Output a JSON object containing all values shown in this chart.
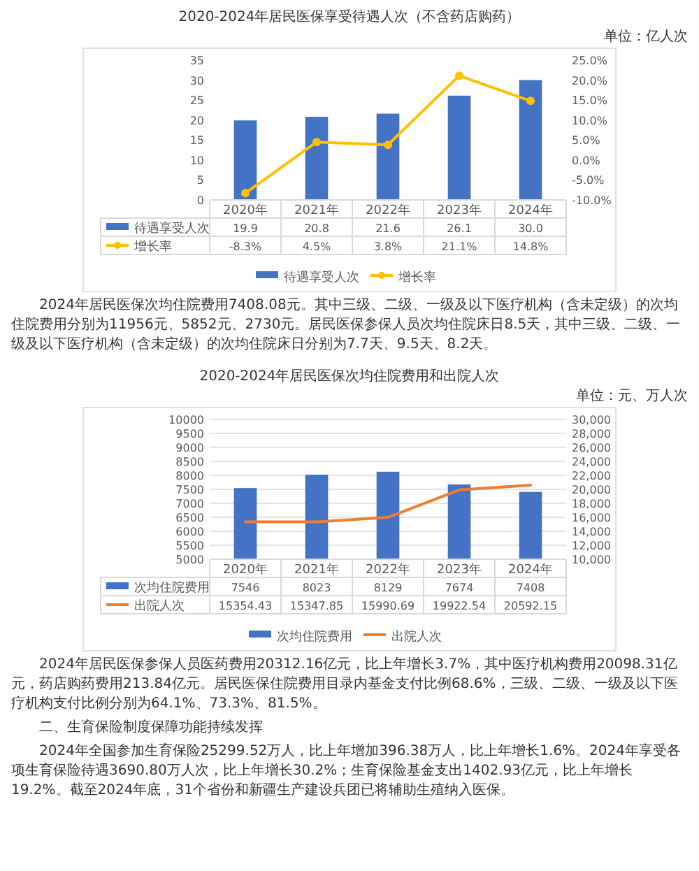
{
  "chart_data": [
    {
      "type": "bar",
      "title": "2020-2024年居民医保享受待遇人次（不含药店购药）",
      "categories": [
        "2020年",
        "2021年",
        "2022年",
        "2023年",
        "2024年"
      ],
      "series": [
        {
          "name": "待遇享受人次",
          "color": "#4472c4",
          "values": [
            19.9,
            20.8,
            21.6,
            26.1,
            30.0
          ],
          "value_labels": [
            "19.9",
            "20.8",
            "21.6",
            "26.1",
            "30.0"
          ]
        },
        {
          "name": "增长率",
          "type": "line",
          "axis": "y2",
          "color": "#ffc000",
          "values": [
            -8.3,
            4.5,
            3.8,
            21.1,
            14.8
          ],
          "value_labels": [
            "-8.3%",
            "4.5%",
            "3.8%",
            "21.1%",
            "14.8%"
          ]
        }
      ],
      "ylim": [
        0,
        35
      ],
      "yticks": [
        0,
        5,
        10,
        15,
        20,
        25,
        30,
        35
      ],
      "y2lim": [
        -10,
        25
      ],
      "y2ticks": [
        {
          "value": -10,
          "label": "-10.0%"
        },
        {
          "value": -5,
          "label": "-5.0%"
        },
        {
          "value": 0,
          "label": "0.0%"
        },
        {
          "value": 5,
          "label": "5.0%"
        },
        {
          "value": 10,
          "label": "10.0%"
        },
        {
          "value": 15,
          "label": "15.0%"
        },
        {
          "value": 20,
          "label": "20.0%"
        },
        {
          "value": 25,
          "label": "25.0%"
        }
      ],
      "marker": "circle",
      "legend": "bottom",
      "annotations": [
        "单位：亿人次",
        "2024年居民医保次均住院费用7408.08元。其中三级、二级、一级及以下医疗机构（含未定级）的次均住院费用分别为11956元、5852元、2730元。居民医保参保人员次均住院床日8.5天，其中三级、二级、一级及以下医疗机构（含未定级）的次均住院床日分别为7.7天、9.5天、8.2天。"
      ]
    },
    {
      "type": "bar",
      "title": "2020-2024年居民医保次均住院费用和出院人次",
      "categories": [
        "2020年",
        "2021年",
        "2022年",
        "2023年",
        "2024年"
      ],
      "series": [
        {
          "name": "次均住院费用",
          "color": "#4472c4",
          "values": [
            7546,
            8023,
            8129,
            7674,
            7408
          ]
        },
        {
          "name": "出院人次",
          "type": "line",
          "axis": "y2",
          "color": "#ed7d31",
          "values": [
            15354.43,
            15347.85,
            15990.69,
            19922.54,
            20592.15
          ]
        }
      ],
      "ylim": [
        5000,
        10000
      ],
      "yticks": [
        5000,
        5500,
        6000,
        6500,
        7000,
        7500,
        8000,
        8500,
        9000,
        9500,
        10000
      ],
      "y2lim": [
        10000,
        30000
      ],
      "y2ticks": [
        {
          "value": 10000,
          "label": "10,000"
        },
        {
          "value": 12000,
          "label": "12,000"
        },
        {
          "value": 14000,
          "label": "14,000"
        },
        {
          "value": 16000,
          "label": "16,000"
        },
        {
          "value": 18000,
          "label": "18,000"
        },
        {
          "value": 20000,
          "label": "20,000"
        },
        {
          "value": 22000,
          "label": "22,000"
        },
        {
          "value": 24000,
          "label": "24,000"
        },
        {
          "value": 26000,
          "label": "26,000"
        },
        {
          "value": 28000,
          "label": "28,000"
        },
        {
          "value": 30000,
          "label": "30,000"
        }
      ],
      "grid": "y",
      "data_labels": true,
      "legend": "bottom",
      "annotations": [
        "单位：元、万人次",
        "2024年居民医保参保人员医药费用20312.16亿元，比上年增长3.7%，其中医疗机构费用20098.31亿元，药店购药费用213.84亿元。居民医保住院费用目录内基金支付比例68.6%，三级、二级、一级及以下医疗机构支付比例分别为64.1%、73.3%、81.5%。",
        "二、生育保险制度保障功能持续发挥",
        "2024年全国参加生育保险25299.52万人，比上年增加396.38万人，比上年增长1.6%。2024年享受各项生育保险待遇3690.80万人次，比上年增长30.2%；生育保险基金支出1402.93亿元，比上年增长19.2%。截至2024年底，31个省份和新疆生产建设兵团已将辅助生殖纳入医保。"
      ]
    }
  ]
}
